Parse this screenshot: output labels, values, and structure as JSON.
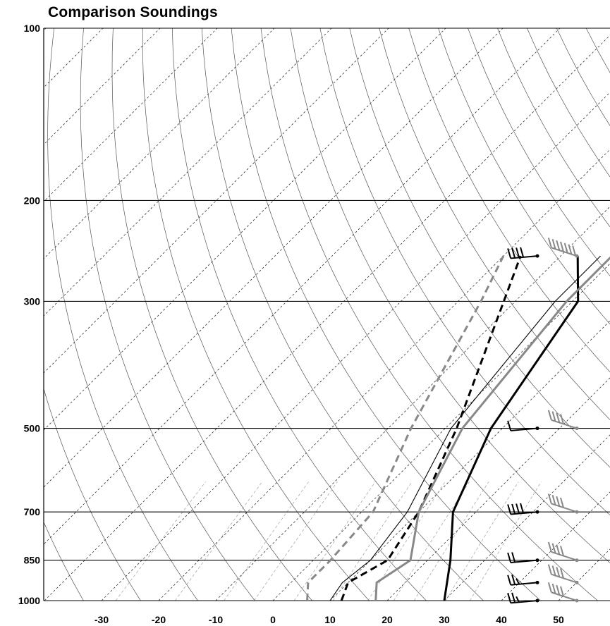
{
  "chart_data": {
    "type": "line",
    "title": "Comparison Soundings",
    "xlabel": "",
    "ylabel": "",
    "pressure_ticks": [
      100,
      200,
      300,
      500,
      700,
      850,
      1000
    ],
    "temperature_ticks": [
      -30,
      -20,
      -10,
      0,
      10,
      20,
      30,
      40,
      50
    ],
    "xlim": [
      -38,
      57
    ],
    "ylim": [
      1000,
      100
    ],
    "y_scale": "log",
    "skew": "skew-T log-p",
    "grid": true,
    "series": [
      {
        "color": "#000000",
        "style": "solid-thick",
        "kind": "temperature",
        "points": [
          [
            1000,
            30
          ],
          [
            850,
            24
          ],
          [
            700,
            16
          ],
          [
            500,
            8
          ],
          [
            300,
            1
          ],
          [
            250,
            -7
          ]
        ]
      },
      {
        "color": "#000000",
        "style": "dashed",
        "kind": "dewpoint",
        "points": [
          [
            1000,
            12
          ],
          [
            930,
            10
          ],
          [
            850,
            13
          ],
          [
            700,
            10
          ],
          [
            500,
            2
          ],
          [
            300,
            -12
          ],
          [
            250,
            -17
          ]
        ]
      },
      {
        "color": "#888888",
        "style": "solid-thick",
        "kind": "temperature",
        "points": [
          [
            1000,
            18
          ],
          [
            930,
            15
          ],
          [
            850,
            17
          ],
          [
            700,
            10
          ],
          [
            500,
            3
          ],
          [
            300,
            -1
          ],
          [
            250,
            -1
          ]
        ]
      },
      {
        "color": "#888888",
        "style": "dashed",
        "kind": "dewpoint",
        "points": [
          [
            1000,
            6
          ],
          [
            930,
            3
          ],
          [
            850,
            3
          ],
          [
            700,
            2
          ],
          [
            500,
            -6
          ],
          [
            300,
            -16
          ],
          [
            250,
            -20
          ]
        ]
      },
      {
        "color": "#000000",
        "style": "solid-thin",
        "kind": "parcel",
        "points": [
          [
            1000,
            10
          ],
          [
            930,
            9
          ],
          [
            850,
            10
          ],
          [
            700,
            8
          ],
          [
            500,
            1
          ],
          [
            300,
            -3
          ],
          [
            250,
            -3
          ]
        ]
      }
    ],
    "wind_barbs": [
      {
        "color": "#000000",
        "pressure": 1000,
        "speed_kt": 25
      },
      {
        "color": "#000000",
        "pressure": 930,
        "speed_kt": 25
      },
      {
        "color": "#000000",
        "pressure": 850,
        "speed_kt": 20
      },
      {
        "color": "#000000",
        "pressure": 700,
        "speed_kt": 40
      },
      {
        "color": "#000000",
        "pressure": 500,
        "speed_kt": 10
      },
      {
        "color": "#000000",
        "pressure": 250,
        "speed_kt": 40
      },
      {
        "color": "#888888",
        "pressure": 1000,
        "speed_kt": 40
      },
      {
        "color": "#888888",
        "pressure": 930,
        "speed_kt": 40
      },
      {
        "color": "#888888",
        "pressure": 850,
        "speed_kt": 40
      },
      {
        "color": "#888888",
        "pressure": 700,
        "speed_kt": 40
      },
      {
        "color": "#888888",
        "pressure": 500,
        "speed_kt": 40
      },
      {
        "color": "#888888",
        "pressure": 250,
        "speed_kt": 70
      }
    ]
  }
}
